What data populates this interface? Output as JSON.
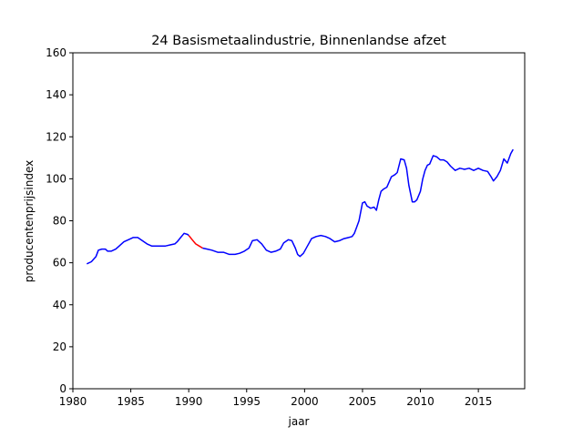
{
  "chart_data": {
    "type": "line",
    "title": "24 Basismetaalindustrie, Binnenlandse afzet",
    "xlabel": "jaar",
    "ylabel": "producentenprijsindex",
    "xlim": [
      1980,
      2019
    ],
    "ylim": [
      0,
      160
    ],
    "xticks": [
      1980,
      1985,
      1990,
      1995,
      2000,
      2005,
      2010,
      2015
    ],
    "yticks": [
      0,
      20,
      40,
      60,
      80,
      100,
      120,
      140,
      160
    ],
    "grid": false,
    "legend": "none",
    "series": [
      {
        "color": "#0000ff",
        "x": [
          1981.2,
          1981.6,
          1982.0,
          1982.2,
          1982.5,
          1982.8,
          1983.0,
          1983.3,
          1983.7,
          1984.0,
          1984.4,
          1984.8,
          1985.2,
          1985.6,
          1986.0,
          1986.4,
          1986.8,
          1987.2,
          1987.6,
          1988.0,
          1988.4,
          1988.8,
          1989.0,
          1989.3,
          1989.6,
          1989.9,
          1990.0
        ],
        "y": [
          59.5,
          60.5,
          63.0,
          66.0,
          66.5,
          66.5,
          65.5,
          65.5,
          66.5,
          68.0,
          70.0,
          71.0,
          72.0,
          72.0,
          70.5,
          69.0,
          68.0,
          68.0,
          68.0,
          68.0,
          68.5,
          69.0,
          70.0,
          72.0,
          74.0,
          73.5,
          73.0
        ]
      },
      {
        "color": "#ff0000",
        "x": [
          1990.0,
          1990.3,
          1990.6,
          1990.9,
          1991.2
        ],
        "y": [
          73.0,
          71.0,
          69.0,
          68.0,
          67.0
        ]
      },
      {
        "color": "#0000ff",
        "x": [
          1991.2,
          1991.6,
          1992.0,
          1992.5,
          1993.0,
          1993.5,
          1994.0,
          1994.4,
          1994.8,
          1995.2,
          1995.5,
          1995.9,
          1996.3,
          1996.7,
          1997.1,
          1997.5,
          1997.9,
          1998.2,
          1998.6,
          1998.9,
          1999.2,
          1999.4,
          1999.6,
          1999.9,
          2000.2,
          2000.6,
          2001.0,
          2001.4,
          2001.8,
          2002.2,
          2002.6,
          2003.0,
          2003.4,
          2003.8,
          2004.1,
          2004.3,
          2004.5,
          2004.7,
          2005.0,
          2005.2,
          2005.4,
          2005.7,
          2006.0,
          2006.2,
          2006.4,
          2006.6,
          2006.8,
          2007.1,
          2007.5,
          2007.8,
          2008.0,
          2008.3,
          2008.6,
          2008.8,
          2009.0,
          2009.3,
          2009.5,
          2009.7,
          2010.0,
          2010.2,
          2010.4,
          2010.6,
          2010.8,
          2011.1,
          2011.4,
          2011.7,
          2012.0,
          2012.3,
          2012.6,
          2013.0,
          2013.4,
          2013.8,
          2014.2,
          2014.6,
          2015.0,
          2015.4,
          2015.8,
          2016.1,
          2016.3,
          2016.6,
          2016.9,
          2017.2,
          2017.5,
          2017.8,
          2018.0
        ],
        "y": [
          67.0,
          66.5,
          66.0,
          65.0,
          65.0,
          64.0,
          64.0,
          64.5,
          65.5,
          67.0,
          70.5,
          71.0,
          69.0,
          66.0,
          65.0,
          65.5,
          66.5,
          69.5,
          71.0,
          70.5,
          67.0,
          64.0,
          63.0,
          64.5,
          67.5,
          71.5,
          72.5,
          73.0,
          72.5,
          71.5,
          70.0,
          70.5,
          71.5,
          72.0,
          72.5,
          74.0,
          77.0,
          80.0,
          88.5,
          89.0,
          87.0,
          86.0,
          86.5,
          85.0,
          90.0,
          94.0,
          95.0,
          96.0,
          101.0,
          102.0,
          103.0,
          109.5,
          109.0,
          105.0,
          97.0,
          89.0,
          89.0,
          90.0,
          94.0,
          100.0,
          104.0,
          106.5,
          107.0,
          111.0,
          110.5,
          109.0,
          109.0,
          108.0,
          106.0,
          104.0,
          105.0,
          104.5,
          105.0,
          104.0,
          105.0,
          104.0,
          103.5,
          101.0,
          99.0,
          101.0,
          104.0,
          109.5,
          107.5,
          112.0,
          114.0
        ]
      }
    ]
  }
}
